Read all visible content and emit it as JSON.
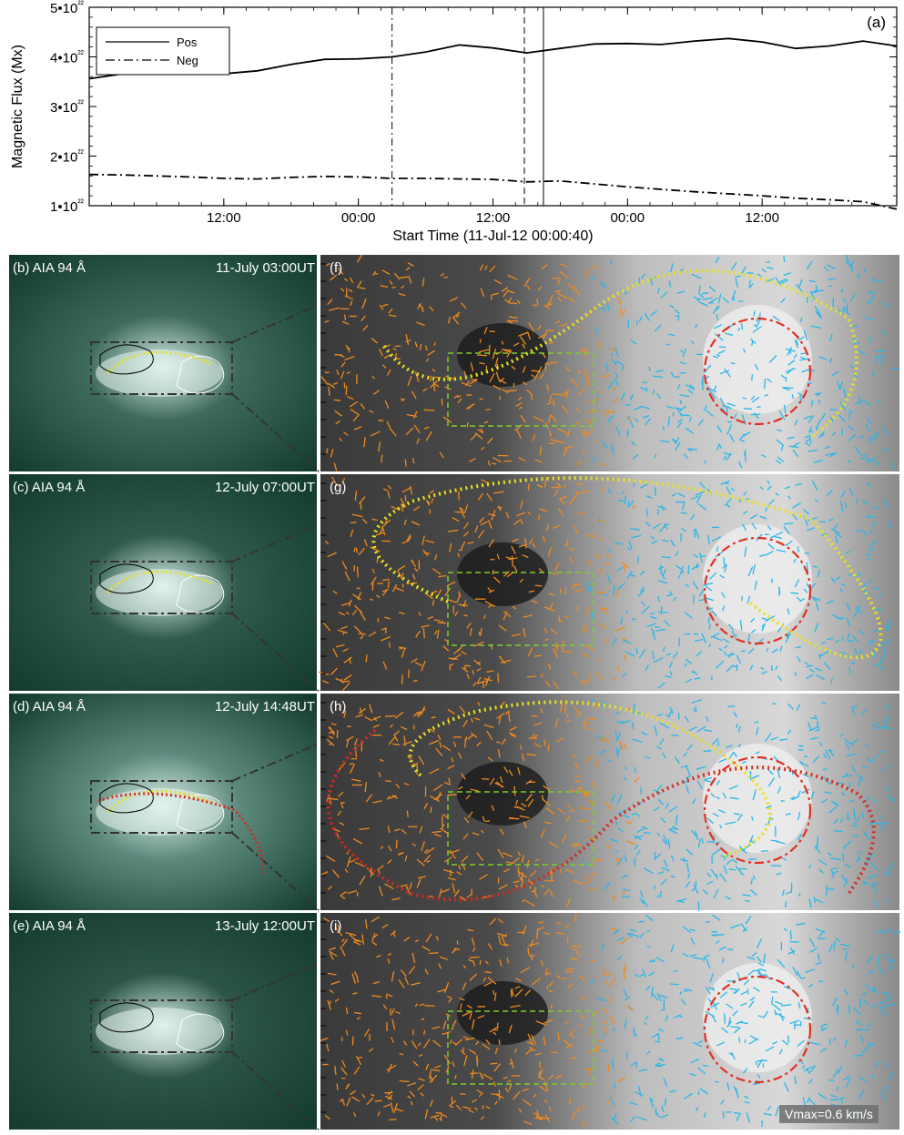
{
  "chart_data": {
    "type": "line",
    "panel_label": "(a)",
    "ylabel": "Magnetic Flux (Mx)",
    "xlabel": "Start Time (11-Jul-12 00:00:40)",
    "x_tick_labels": [
      "12:00",
      "00:00",
      "12:00",
      "00:00",
      "12:00"
    ],
    "y_tick_labels": [
      "1•10²²",
      "2•10²²",
      "3•10²²",
      "4•10²²",
      "5•10²²"
    ],
    "ylim": [
      1e+22,
      5e+22
    ],
    "xlim_hours": [
      0,
      72
    ],
    "vertical_lines": [
      {
        "style": "dash-dot",
        "hour": 27.0
      },
      {
        "style": "dashed",
        "hour": 38.8
      },
      {
        "style": "solid",
        "hour": 40.5
      }
    ],
    "legend": {
      "position": "top-left"
    },
    "series": [
      {
        "name": "Pos",
        "style": "solid",
        "x": [
          0,
          3,
          6,
          9,
          12,
          15,
          18,
          21,
          24,
          27,
          30,
          33,
          36,
          39,
          42,
          45,
          48,
          51,
          54,
          57,
          60,
          63,
          66,
          69,
          72
        ],
        "y": [
          3.56e+22,
          3.66e+22,
          3.76e+22,
          3.72e+22,
          3.66e+22,
          3.72e+22,
          3.85e+22,
          3.95e+22,
          3.96e+22,
          4e+22,
          4.1e+22,
          4.24e+22,
          4.18e+22,
          4.08e+22,
          4.17e+22,
          4.26e+22,
          4.27e+22,
          4.25e+22,
          4.32e+22,
          4.37e+22,
          4.3e+22,
          4.17e+22,
          4.22e+22,
          4.32e+22,
          4.22e+22
        ]
      },
      {
        "name": "Neg",
        "style": "dash-dot",
        "x": [
          0,
          3,
          6,
          9,
          12,
          15,
          18,
          21,
          24,
          27,
          30,
          33,
          36,
          39,
          42,
          45,
          48,
          51,
          54,
          57,
          60,
          63,
          66,
          69,
          72
        ],
        "y": [
          1.63e+22,
          1.62e+22,
          1.6e+22,
          1.58e+22,
          1.55e+22,
          1.54e+22,
          1.57e+22,
          1.59e+22,
          1.58e+22,
          1.55e+22,
          1.55e+22,
          1.54e+22,
          1.53e+22,
          1.48e+22,
          1.5e+22,
          1.44e+22,
          1.38e+22,
          1.33e+22,
          1.28e+22,
          1.24e+22,
          1.2e+22,
          1.15e+22,
          1.12e+22,
          1.08e+22,
          9.3e+21
        ]
      }
    ]
  },
  "panels_left": [
    {
      "label": "(b) AIA 94 Å",
      "time": "11-July 03:00UT",
      "tint": "#3e6a5c"
    },
    {
      "label": "(c) AIA 94 Å",
      "time": "12-July 07:00UT",
      "tint": "#2f5a4d"
    },
    {
      "label": "(d) AIA 94 Å",
      "time": "12-July 14:48UT",
      "tint": "#5e8a7e"
    },
    {
      "label": "(e) AIA 94 Å",
      "time": "13-July 12:00UT",
      "tint": "#2c5548"
    }
  ],
  "panels_right": [
    {
      "label": "(f)"
    },
    {
      "label": "(g)"
    },
    {
      "label": "(h)"
    },
    {
      "label": "(i)"
    }
  ],
  "vmax_label": "Vmax=0.6 km/s",
  "colors": {
    "positive_flow": "#29b6e8",
    "negative_flow": "#f08a1e",
    "yellow_loop": "#e8e020",
    "red_loop": "#d42a1e",
    "green_box": "#7ccf2a",
    "red_circle": "#e03020"
  }
}
